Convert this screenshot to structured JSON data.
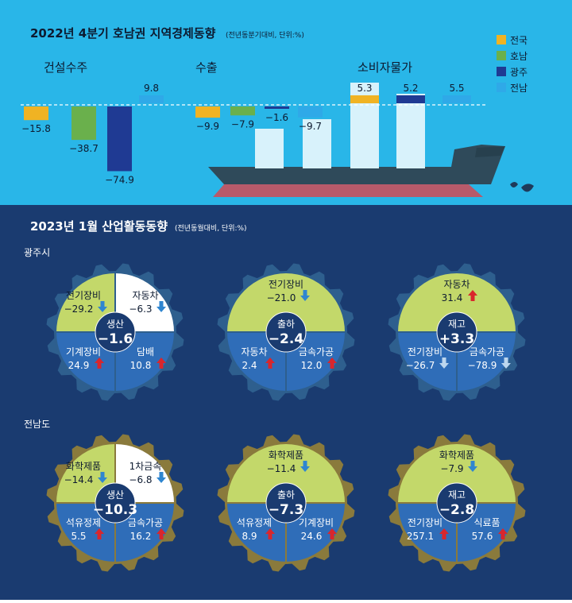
{
  "top": {
    "title": "2022년 4분기 호남권 지역경제동향",
    "subtitle": "(전년동분기대비, 단위:%)"
  },
  "bottom": {
    "title": "2023년 1월 산업활동동향",
    "subtitle": "(전년동월대비, 단위:%)",
    "regions": [
      {
        "label": "광주시"
      },
      {
        "label": "전남도"
      }
    ]
  },
  "colors": {
    "sky": "#29b6e8",
    "navy": "#1a3b70",
    "nationwide": "#f0b323",
    "honam": "#6ab04c",
    "gwangju": "#1f3a93",
    "jeonnam": "#2fa9e8",
    "gear_gwangju": "#2e5f8e",
    "gear_jeonnam": "#8a7a3c",
    "green_quad": "#c3d86a",
    "blue_quad": "#2f6db8"
  },
  "chart_data": [
    {
      "type": "bar",
      "title": "2022년 4분기 호남권 지역경제동향",
      "subtitle": "(전년동분기대비, 단위:%)",
      "legend_position": "top-right",
      "categories": [
        "건설수주",
        "수출",
        "소비자물가"
      ],
      "series": [
        {
          "name": "전국",
          "values": [
            -15.8,
            -9.9,
            5.3
          ]
        },
        {
          "name": "호남",
          "values": [
            -38.7,
            -7.9,
            null
          ]
        },
        {
          "name": "광주",
          "values": [
            -74.9,
            -1.6,
            5.2
          ]
        },
        {
          "name": "전남",
          "values": [
            9.8,
            -9.7,
            5.5
          ]
        }
      ]
    },
    {
      "type": "table",
      "title": "2023년 1월 산업활동동향",
      "subtitle": "(전년동월대비, 단위:%)",
      "regions": [
        {
          "name": "광주시",
          "gauges": [
            {
              "center_label": "생산",
              "center_value": "-1.6",
              "items": [
                {
                  "label": "전기장비",
                  "value": "-29.2",
                  "dir": "down"
                },
                {
                  "label": "자동차",
                  "value": "-6.3",
                  "dir": "down"
                },
                {
                  "label": "기계장비",
                  "value": "24.9",
                  "dir": "up"
                },
                {
                  "label": "담배",
                  "value": "10.8",
                  "dir": "up"
                }
              ]
            },
            {
              "center_label": "출하",
              "center_value": "-2.4",
              "items": [
                {
                  "label": "전기장비",
                  "value": "-21.0",
                  "dir": "down"
                },
                {
                  "label": "자동차",
                  "value": "2.4",
                  "dir": "up"
                },
                {
                  "label": "금속가공",
                  "value": "12.0",
                  "dir": "up"
                }
              ]
            },
            {
              "center_label": "재고",
              "center_value": "+3.3",
              "items": [
                {
                  "label": "자동차",
                  "value": "31.4",
                  "dir": "up"
                },
                {
                  "label": "전기장비",
                  "value": "-26.7",
                  "dir": "down"
                },
                {
                  "label": "금속가공",
                  "value": "-78.9",
                  "dir": "down"
                }
              ]
            }
          ]
        },
        {
          "name": "전남도",
          "gauges": [
            {
              "center_label": "생산",
              "center_value": "-10.3",
              "items": [
                {
                  "label": "화학제품",
                  "value": "-14.4",
                  "dir": "down"
                },
                {
                  "label": "1차금속",
                  "value": "-6.8",
                  "dir": "down"
                },
                {
                  "label": "석유정제",
                  "value": "5.5",
                  "dir": "up"
                },
                {
                  "label": "금속가공",
                  "value": "16.2",
                  "dir": "up"
                }
              ]
            },
            {
              "center_label": "출하",
              "center_value": "-7.3",
              "items": [
                {
                  "label": "화학제품",
                  "value": "-11.4",
                  "dir": "down"
                },
                {
                  "label": "석유정제",
                  "value": "8.9",
                  "dir": "up"
                },
                {
                  "label": "기계장비",
                  "value": "24.6",
                  "dir": "up"
                }
              ]
            },
            {
              "center_label": "재고",
              "center_value": "-2.8",
              "items": [
                {
                  "label": "화학제품",
                  "value": "-7.9",
                  "dir": "down"
                },
                {
                  "label": "전기장비",
                  "value": "257.1",
                  "dir": "up"
                },
                {
                  "label": "식료품",
                  "value": "57.6",
                  "dir": "up"
                }
              ]
            }
          ]
        }
      ]
    }
  ]
}
